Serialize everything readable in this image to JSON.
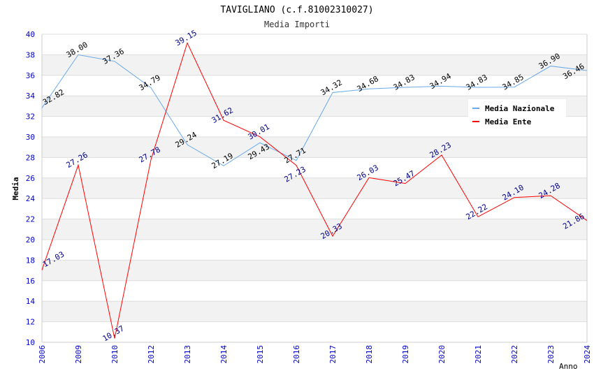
{
  "chart_data": {
    "type": "line",
    "title": "TAVIGLIANO (c.f.81002310027)",
    "subtitle": "Media Importi",
    "xlabel": "Anno",
    "ylabel": "Media",
    "ylim": [
      10,
      40
    ],
    "yticks": [
      10,
      12,
      14,
      16,
      18,
      20,
      22,
      24,
      26,
      28,
      30,
      32,
      34,
      36,
      38,
      40
    ],
    "categories": [
      "2006",
      "2009",
      "2010",
      "2012",
      "2013",
      "2014",
      "2015",
      "2016",
      "2017",
      "2018",
      "2019",
      "2020",
      "2021",
      "2022",
      "2023",
      "2024"
    ],
    "series": [
      {
        "name": "Media Nazionale",
        "color": "#6aa9ea",
        "label_color": "#000000",
        "values": [
          32.82,
          38.0,
          37.36,
          34.79,
          29.24,
          27.19,
          29.43,
          27.71,
          34.32,
          34.68,
          34.83,
          34.94,
          34.83,
          34.85,
          36.9,
          36.46
        ]
      },
      {
        "name": "Media Ente",
        "color": "#ff0000",
        "label_color": "#00008b",
        "values": [
          17.03,
          27.26,
          10.37,
          27.78,
          39.15,
          31.62,
          30.01,
          27.23,
          20.33,
          26.03,
          25.47,
          28.23,
          22.22,
          24.1,
          24.28,
          21.86
        ]
      }
    ],
    "legend_position": "top-right",
    "grid": true
  }
}
